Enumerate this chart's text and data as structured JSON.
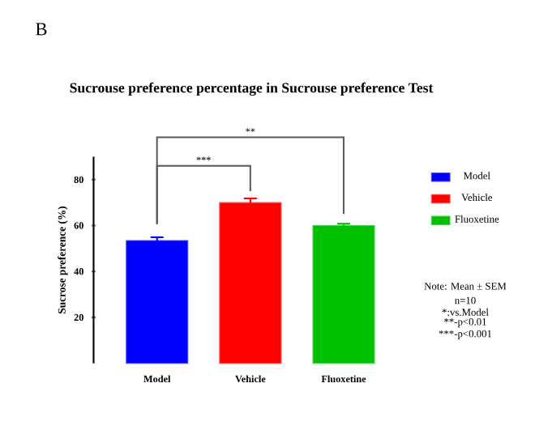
{
  "chart_data": {
    "type": "bar",
    "title": "Sucrouse preference percentage in Sucrouse preference Test",
    "ylabel": "Sucrose preference (%)",
    "categories": [
      "Model",
      "Vehicle",
      "Fluoxetine"
    ],
    "series": [
      {
        "name": "Model",
        "color": "#0000ff",
        "values": [
          53.5,
          null,
          null
        ],
        "errors": [
          1.4,
          null,
          null
        ]
      },
      {
        "name": "Vehicle",
        "color": "#ff0000",
        "values": [
          null,
          70,
          null
        ],
        "errors": [
          null,
          1.8,
          null
        ]
      },
      {
        "name": "Fluoxetine",
        "color": "#00c000",
        "values": [
          null,
          null,
          60
        ],
        "errors": [
          null,
          null,
          0.8
        ]
      }
    ],
    "ylim": [
      0,
      90
    ],
    "yticks": [
      20,
      40,
      60,
      80
    ],
    "legend": "right",
    "annotations": [
      "B",
      "**",
      "***",
      "Note: Mean ± SEM",
      "n=10",
      "*:vs.Model",
      "**-p<0.01",
      "***-p<0.001"
    ]
  }
}
